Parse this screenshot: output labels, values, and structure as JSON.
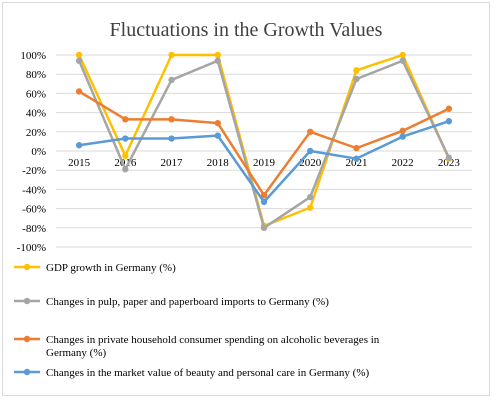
{
  "chart_data": {
    "type": "line",
    "title": "Fluctuations in the Growth Values",
    "xlabel": "",
    "ylabel": "",
    "categories": [
      "2015",
      "2016",
      "2017",
      "2018",
      "2019",
      "2020",
      "2021",
      "2022",
      "2023"
    ],
    "ylim": [
      -100,
      100
    ],
    "yticks": [
      100,
      80,
      60,
      40,
      20,
      0,
      -20,
      -40,
      -60,
      -80,
      -100
    ],
    "ytick_labels": [
      "100%",
      "80%",
      "60%",
      "40%",
      "20%",
      "0%",
      "-20%",
      "-40%",
      "-60%",
      "-80%",
      "-100%"
    ],
    "grid": true,
    "legend_position": "bottom",
    "series": [
      {
        "name": "GDP growth in Germany (%)",
        "color": "#FFC000",
        "values": [
          100,
          -5,
          100,
          100,
          -78,
          -59,
          84,
          100,
          -8
        ]
      },
      {
        "name": "Changes in pulp, paper and paperboard imports to Germany (%)",
        "color": "#A5A5A5",
        "values": [
          94,
          -19,
          74,
          94,
          -80,
          -48,
          75,
          94,
          -7
        ]
      },
      {
        "name": "Changes in private household consumer spending on alcoholic beverages in Germany (%)",
        "color": "#ED7D31",
        "values": [
          62,
          33,
          33,
          29,
          -46,
          20,
          3,
          21,
          44
        ]
      },
      {
        "name": "Changes in the market value of beauty and personal care in Germany (%)",
        "color": "#5B9BD5",
        "values": [
          6,
          13,
          13,
          16,
          -53,
          0,
          -8,
          15,
          31
        ]
      }
    ]
  }
}
